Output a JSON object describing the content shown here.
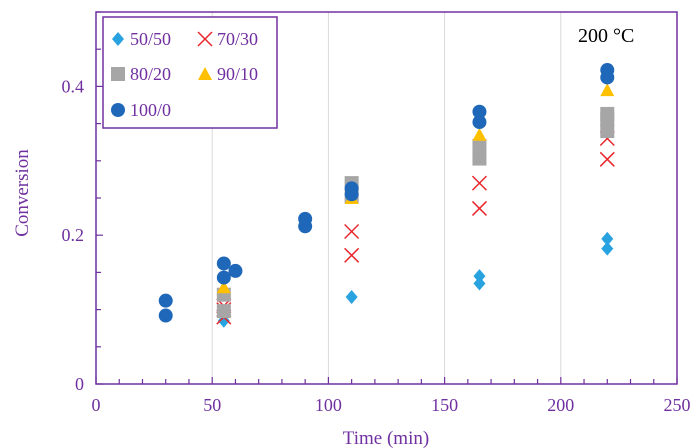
{
  "chart_data": {
    "type": "scatter",
    "title": "",
    "annotation": "200 °C",
    "xlabel": "Time (min)",
    "ylabel": "Conversion",
    "xlim": [
      0,
      250
    ],
    "ylim": [
      0,
      0.5
    ],
    "xticks": [
      0,
      50,
      100,
      150,
      200,
      250
    ],
    "yticks": [
      0,
      0.2,
      0.4
    ],
    "ytick_labels": [
      "0",
      "0.2",
      "0.4"
    ],
    "grid": "vertical",
    "legend_position": "top-left",
    "series": [
      {
        "name": "50/50",
        "marker": "diamond",
        "color": "#29a3df",
        "points": [
          [
            55,
            0.085
          ],
          [
            55,
            0.095
          ],
          [
            110,
            0.117
          ],
          [
            165,
            0.135
          ],
          [
            165,
            0.145
          ],
          [
            220,
            0.182
          ],
          [
            220,
            0.195
          ]
        ]
      },
      {
        "name": "70/30",
        "marker": "x",
        "color": "#e8262b",
        "points": [
          [
            55,
            0.09
          ],
          [
            55,
            0.1
          ],
          [
            55,
            0.105
          ],
          [
            110,
            0.173
          ],
          [
            110,
            0.205
          ],
          [
            165,
            0.236
          ],
          [
            165,
            0.27
          ],
          [
            220,
            0.302
          ],
          [
            220,
            0.33
          ]
        ]
      },
      {
        "name": "80/20",
        "marker": "square",
        "color": "#a6a6a6",
        "points": [
          [
            55,
            0.098
          ],
          [
            55,
            0.12
          ],
          [
            110,
            0.252
          ],
          [
            110,
            0.27
          ],
          [
            165,
            0.303
          ],
          [
            165,
            0.32
          ],
          [
            220,
            0.34
          ],
          [
            220,
            0.355
          ],
          [
            220,
            0.363
          ]
        ]
      },
      {
        "name": "90/10",
        "marker": "triangle",
        "color": "#ffc000",
        "points": [
          [
            55,
            0.13
          ],
          [
            110,
            0.25
          ],
          [
            165,
            0.335
          ],
          [
            220,
            0.395
          ]
        ]
      },
      {
        "name": "100/0",
        "marker": "circle",
        "color": "#1f67b9",
        "points": [
          [
            30,
            0.092
          ],
          [
            30,
            0.112
          ],
          [
            55,
            0.143
          ],
          [
            55,
            0.162
          ],
          [
            60,
            0.152
          ],
          [
            90,
            0.212
          ],
          [
            90,
            0.222
          ],
          [
            110,
            0.255
          ],
          [
            110,
            0.263
          ],
          [
            165,
            0.352
          ],
          [
            165,
            0.366
          ],
          [
            220,
            0.412
          ],
          [
            220,
            0.422
          ]
        ]
      }
    ]
  },
  "colors": {
    "axis": "#7030a0",
    "grid": "#d9d9d9",
    "legend_border": "#7030a0"
  }
}
